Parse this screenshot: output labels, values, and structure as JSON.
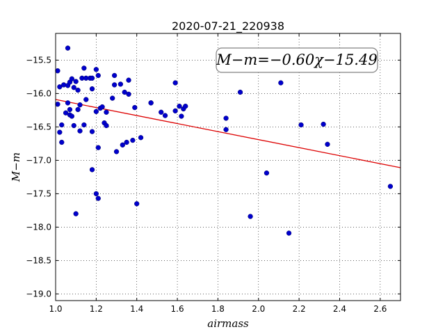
{
  "chart_data": {
    "type": "scatter",
    "title": "2020-07-21_220938",
    "xlabel": "airmass",
    "ylabel": "M−m",
    "xlim": [
      1.0,
      2.7
    ],
    "ylim": [
      -19.1,
      -15.1
    ],
    "x_ticks": [
      "1.0",
      "1.2",
      "1.4",
      "1.6",
      "1.8",
      "2.0",
      "2.2",
      "2.4",
      "2.6"
    ],
    "y_ticks": [
      "−15.5",
      "−16.0",
      "−16.5",
      "−17.0",
      "−17.5",
      "−18.0",
      "−18.5",
      "−19.0"
    ],
    "grid": true,
    "point_color": "#0000cc",
    "fit_color": "#dd0000",
    "annotation": "M−m=−0.60χ−15.49",
    "fit": {
      "slope": -0.6,
      "intercept": -15.49
    },
    "points": [
      [
        1.01,
        -15.66
      ],
      [
        1.01,
        -16.16
      ],
      [
        1.02,
        -15.9
      ],
      [
        1.02,
        -16.58
      ],
      [
        1.03,
        -16.47
      ],
      [
        1.03,
        -16.73
      ],
      [
        1.04,
        -15.87
      ],
      [
        1.05,
        -16.29
      ],
      [
        1.06,
        -15.32
      ],
      [
        1.06,
        -15.88
      ],
      [
        1.06,
        -16.14
      ],
      [
        1.07,
        -15.83
      ],
      [
        1.07,
        -16.24
      ],
      [
        1.07,
        -16.32
      ],
      [
        1.08,
        -15.78
      ],
      [
        1.08,
        -16.34
      ],
      [
        1.09,
        -15.91
      ],
      [
        1.09,
        -16.48
      ],
      [
        1.1,
        -15.82
      ],
      [
        1.1,
        -17.8
      ],
      [
        1.11,
        -15.95
      ],
      [
        1.11,
        -16.24
      ],
      [
        1.12,
        -16.17
      ],
      [
        1.12,
        -16.56
      ],
      [
        1.13,
        -15.77
      ],
      [
        1.14,
        -15.62
      ],
      [
        1.14,
        -16.47
      ],
      [
        1.15,
        -15.77
      ],
      [
        1.15,
        -16.09
      ],
      [
        1.17,
        -15.77
      ],
      [
        1.18,
        -15.77
      ],
      [
        1.18,
        -15.93
      ],
      [
        1.18,
        -16.57
      ],
      [
        1.18,
        -17.14
      ],
      [
        1.2,
        -15.64
      ],
      [
        1.2,
        -16.27
      ],
      [
        1.2,
        -17.5
      ],
      [
        1.21,
        -15.73
      ],
      [
        1.21,
        -16.81
      ],
      [
        1.21,
        -17.57
      ],
      [
        1.22,
        -16.22
      ],
      [
        1.23,
        -16.2
      ],
      [
        1.24,
        -16.44
      ],
      [
        1.25,
        -16.28
      ],
      [
        1.25,
        -16.48
      ],
      [
        1.28,
        -16.07
      ],
      [
        1.29,
        -15.73
      ],
      [
        1.29,
        -15.87
      ],
      [
        1.3,
        -16.87
      ],
      [
        1.32,
        -15.86
      ],
      [
        1.33,
        -16.77
      ],
      [
        1.34,
        -15.98
      ],
      [
        1.35,
        -16.73
      ],
      [
        1.36,
        -15.8
      ],
      [
        1.36,
        -16.01
      ],
      [
        1.38,
        -16.7
      ],
      [
        1.39,
        -16.21
      ],
      [
        1.4,
        -17.65
      ],
      [
        1.42,
        -16.66
      ],
      [
        1.47,
        -16.14
      ],
      [
        1.47,
        -16.14
      ],
      [
        1.52,
        -16.28
      ],
      [
        1.54,
        -16.33
      ],
      [
        1.59,
        -15.84
      ],
      [
        1.59,
        -16.26
      ],
      [
        1.61,
        -16.19
      ],
      [
        1.62,
        -16.34
      ],
      [
        1.63,
        -16.23
      ],
      [
        1.64,
        -16.19
      ],
      [
        1.84,
        -16.37
      ],
      [
        1.84,
        -16.54
      ],
      [
        1.91,
        -15.98
      ],
      [
        1.96,
        -17.84
      ],
      [
        2.04,
        -17.19
      ],
      [
        2.11,
        -15.84
      ],
      [
        2.15,
        -18.09
      ],
      [
        2.21,
        -16.47
      ],
      [
        2.32,
        -16.46
      ],
      [
        2.34,
        -16.76
      ],
      [
        2.65,
        -17.39
      ]
    ]
  }
}
